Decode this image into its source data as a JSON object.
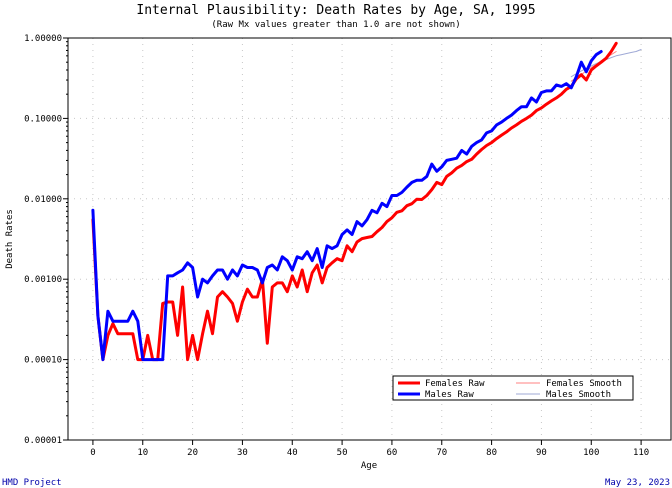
{
  "chart_data": {
    "type": "line",
    "title": "Internal Plausibility: Death Rates by Age, SA, 1995",
    "subtitle": "(Raw Mx values greater than 1.0 are not shown)",
    "xlabel": "Age",
    "ylabel": "Death Rates",
    "xlim": [
      -5,
      116
    ],
    "ylim": [
      1e-05,
      1.0
    ],
    "yscale": "log",
    "xticks": [
      0,
      10,
      20,
      30,
      40,
      50,
      60,
      70,
      80,
      90,
      100,
      110
    ],
    "xtick_labels": [
      "0",
      "10",
      "20",
      "30",
      "40",
      "50",
      "60",
      "70",
      "80",
      "90",
      "100",
      "110"
    ],
    "yticks": [
      1.0,
      0.1,
      0.01,
      0.001,
      0.0001,
      1e-05
    ],
    "ytick_labels": [
      "1.00000",
      "0.10000",
      "0.01000",
      "0.00100",
      "0.00010",
      "0.00001"
    ],
    "grid": true,
    "legend_position": "bottom-right",
    "series": [
      {
        "name": "Females Raw",
        "color": "#ff0000",
        "x": [
          0,
          1,
          2,
          3,
          4,
          5,
          6,
          7,
          8,
          9,
          10,
          11,
          12,
          13,
          14,
          15,
          16,
          17,
          18,
          19,
          20,
          21,
          22,
          23,
          24,
          25,
          26,
          27,
          28,
          29,
          30,
          31,
          32,
          33,
          34,
          35,
          36,
          37,
          38,
          39,
          40,
          41,
          42,
          43,
          44,
          45,
          46,
          47,
          48,
          49,
          50,
          51,
          52,
          53,
          54,
          55,
          56,
          57,
          58,
          59,
          60,
          61,
          62,
          63,
          64,
          65,
          66,
          67,
          68,
          69,
          70,
          71,
          72,
          73,
          74,
          75,
          76,
          77,
          78,
          79,
          80,
          81,
          82,
          83,
          84,
          85,
          86,
          87,
          88,
          89,
          90,
          91,
          92,
          93,
          94,
          95,
          96,
          97,
          98,
          99,
          100,
          101,
          102,
          103,
          104,
          105
        ],
        "y": [
          0.0055,
          0.00035,
          0.0001,
          0.0002,
          0.00028,
          0.00021,
          0.00021,
          0.00021,
          0.00021,
          0.0001,
          0.0001,
          0.0002,
          0.0001,
          0.0001,
          0.0005,
          0.00052,
          0.00052,
          0.0002,
          0.0008,
          0.0001,
          0.0002,
          0.0001,
          0.00021,
          0.0004,
          0.00021,
          0.0006,
          0.0007,
          0.0006,
          0.0005,
          0.0003,
          0.00052,
          0.00075,
          0.0006,
          0.0006,
          0.001,
          0.00016,
          0.0008,
          0.0009,
          0.0009,
          0.0007,
          0.0011,
          0.0008,
          0.0013,
          0.0007,
          0.0012,
          0.0015,
          0.0009,
          0.0014,
          0.0016,
          0.0018,
          0.0017,
          0.0026,
          0.0022,
          0.0029,
          0.0032,
          0.0033,
          0.0034,
          0.0039,
          0.0044,
          0.0052,
          0.0058,
          0.0068,
          0.0071,
          0.0082,
          0.0087,
          0.0099,
          0.0098,
          0.011,
          0.013,
          0.016,
          0.015,
          0.019,
          0.021,
          0.024,
          0.026,
          0.029,
          0.031,
          0.036,
          0.041,
          0.046,
          0.05,
          0.056,
          0.062,
          0.068,
          0.076,
          0.083,
          0.092,
          0.1,
          0.11,
          0.125,
          0.135,
          0.15,
          0.165,
          0.18,
          0.2,
          0.23,
          0.25,
          0.31,
          0.35,
          0.3,
          0.4,
          0.45,
          0.5,
          0.56,
          0.68,
          0.86
        ]
      },
      {
        "name": "Males Raw",
        "color": "#0000ff",
        "x": [
          0,
          1,
          2,
          3,
          4,
          5,
          6,
          7,
          8,
          9,
          10,
          11,
          12,
          13,
          14,
          15,
          16,
          17,
          18,
          19,
          20,
          21,
          22,
          23,
          24,
          25,
          26,
          27,
          28,
          29,
          30,
          31,
          32,
          33,
          34,
          35,
          36,
          37,
          38,
          39,
          40,
          41,
          42,
          43,
          44,
          45,
          46,
          47,
          48,
          49,
          50,
          51,
          52,
          53,
          54,
          55,
          56,
          57,
          58,
          59,
          60,
          61,
          62,
          63,
          64,
          65,
          66,
          67,
          68,
          69,
          70,
          71,
          72,
          73,
          74,
          75,
          76,
          77,
          78,
          79,
          80,
          81,
          82,
          83,
          84,
          85,
          86,
          87,
          88,
          89,
          90,
          91,
          92,
          93,
          94,
          95,
          96,
          97,
          98,
          99,
          100,
          101,
          102
        ],
        "y": [
          0.0072,
          0.00035,
          0.0001,
          0.0004,
          0.0003,
          0.0003,
          0.0003,
          0.0003,
          0.0004,
          0.0003,
          0.0001,
          0.0001,
          0.0001,
          0.0001,
          0.0001,
          0.0011,
          0.0011,
          0.0012,
          0.0013,
          0.0016,
          0.0014,
          0.0006,
          0.001,
          0.0009,
          0.0011,
          0.0013,
          0.0013,
          0.001,
          0.0013,
          0.0011,
          0.0015,
          0.0014,
          0.0014,
          0.0013,
          0.0009,
          0.0014,
          0.0015,
          0.0013,
          0.0019,
          0.0017,
          0.0013,
          0.0019,
          0.0018,
          0.0022,
          0.0017,
          0.0024,
          0.0014,
          0.0026,
          0.0024,
          0.0026,
          0.0036,
          0.0041,
          0.0036,
          0.0052,
          0.0046,
          0.0055,
          0.0072,
          0.0067,
          0.0088,
          0.008,
          0.011,
          0.011,
          0.012,
          0.014,
          0.016,
          0.017,
          0.017,
          0.019,
          0.027,
          0.022,
          0.025,
          0.03,
          0.031,
          0.032,
          0.04,
          0.036,
          0.045,
          0.05,
          0.054,
          0.066,
          0.07,
          0.083,
          0.09,
          0.1,
          0.11,
          0.125,
          0.14,
          0.14,
          0.18,
          0.16,
          0.21,
          0.22,
          0.22,
          0.26,
          0.25,
          0.27,
          0.24,
          0.33,
          0.5,
          0.38,
          0.52,
          0.62,
          0.68
        ]
      },
      {
        "name": "Females Smooth",
        "color": "#ff8080",
        "x": [
          96,
          97,
          98,
          99,
          100,
          101,
          102,
          103,
          104,
          105
        ],
        "y": [
          0.29,
          0.32,
          0.35,
          0.39,
          0.43,
          0.47,
          0.52,
          0.57,
          0.62,
          0.68
        ]
      },
      {
        "name": "Males Smooth",
        "color": "#9fa9d6",
        "x": [
          96,
          97,
          98,
          99,
          100,
          101,
          102,
          103,
          104,
          105,
          106,
          107,
          108,
          109,
          110
        ],
        "y": [
          0.33,
          0.36,
          0.39,
          0.42,
          0.45,
          0.48,
          0.51,
          0.54,
          0.57,
          0.6,
          0.62,
          0.64,
          0.66,
          0.68,
          0.72
        ]
      }
    ]
  },
  "footer": {
    "left": "HMD Project",
    "right": "May 23, 2023"
  }
}
